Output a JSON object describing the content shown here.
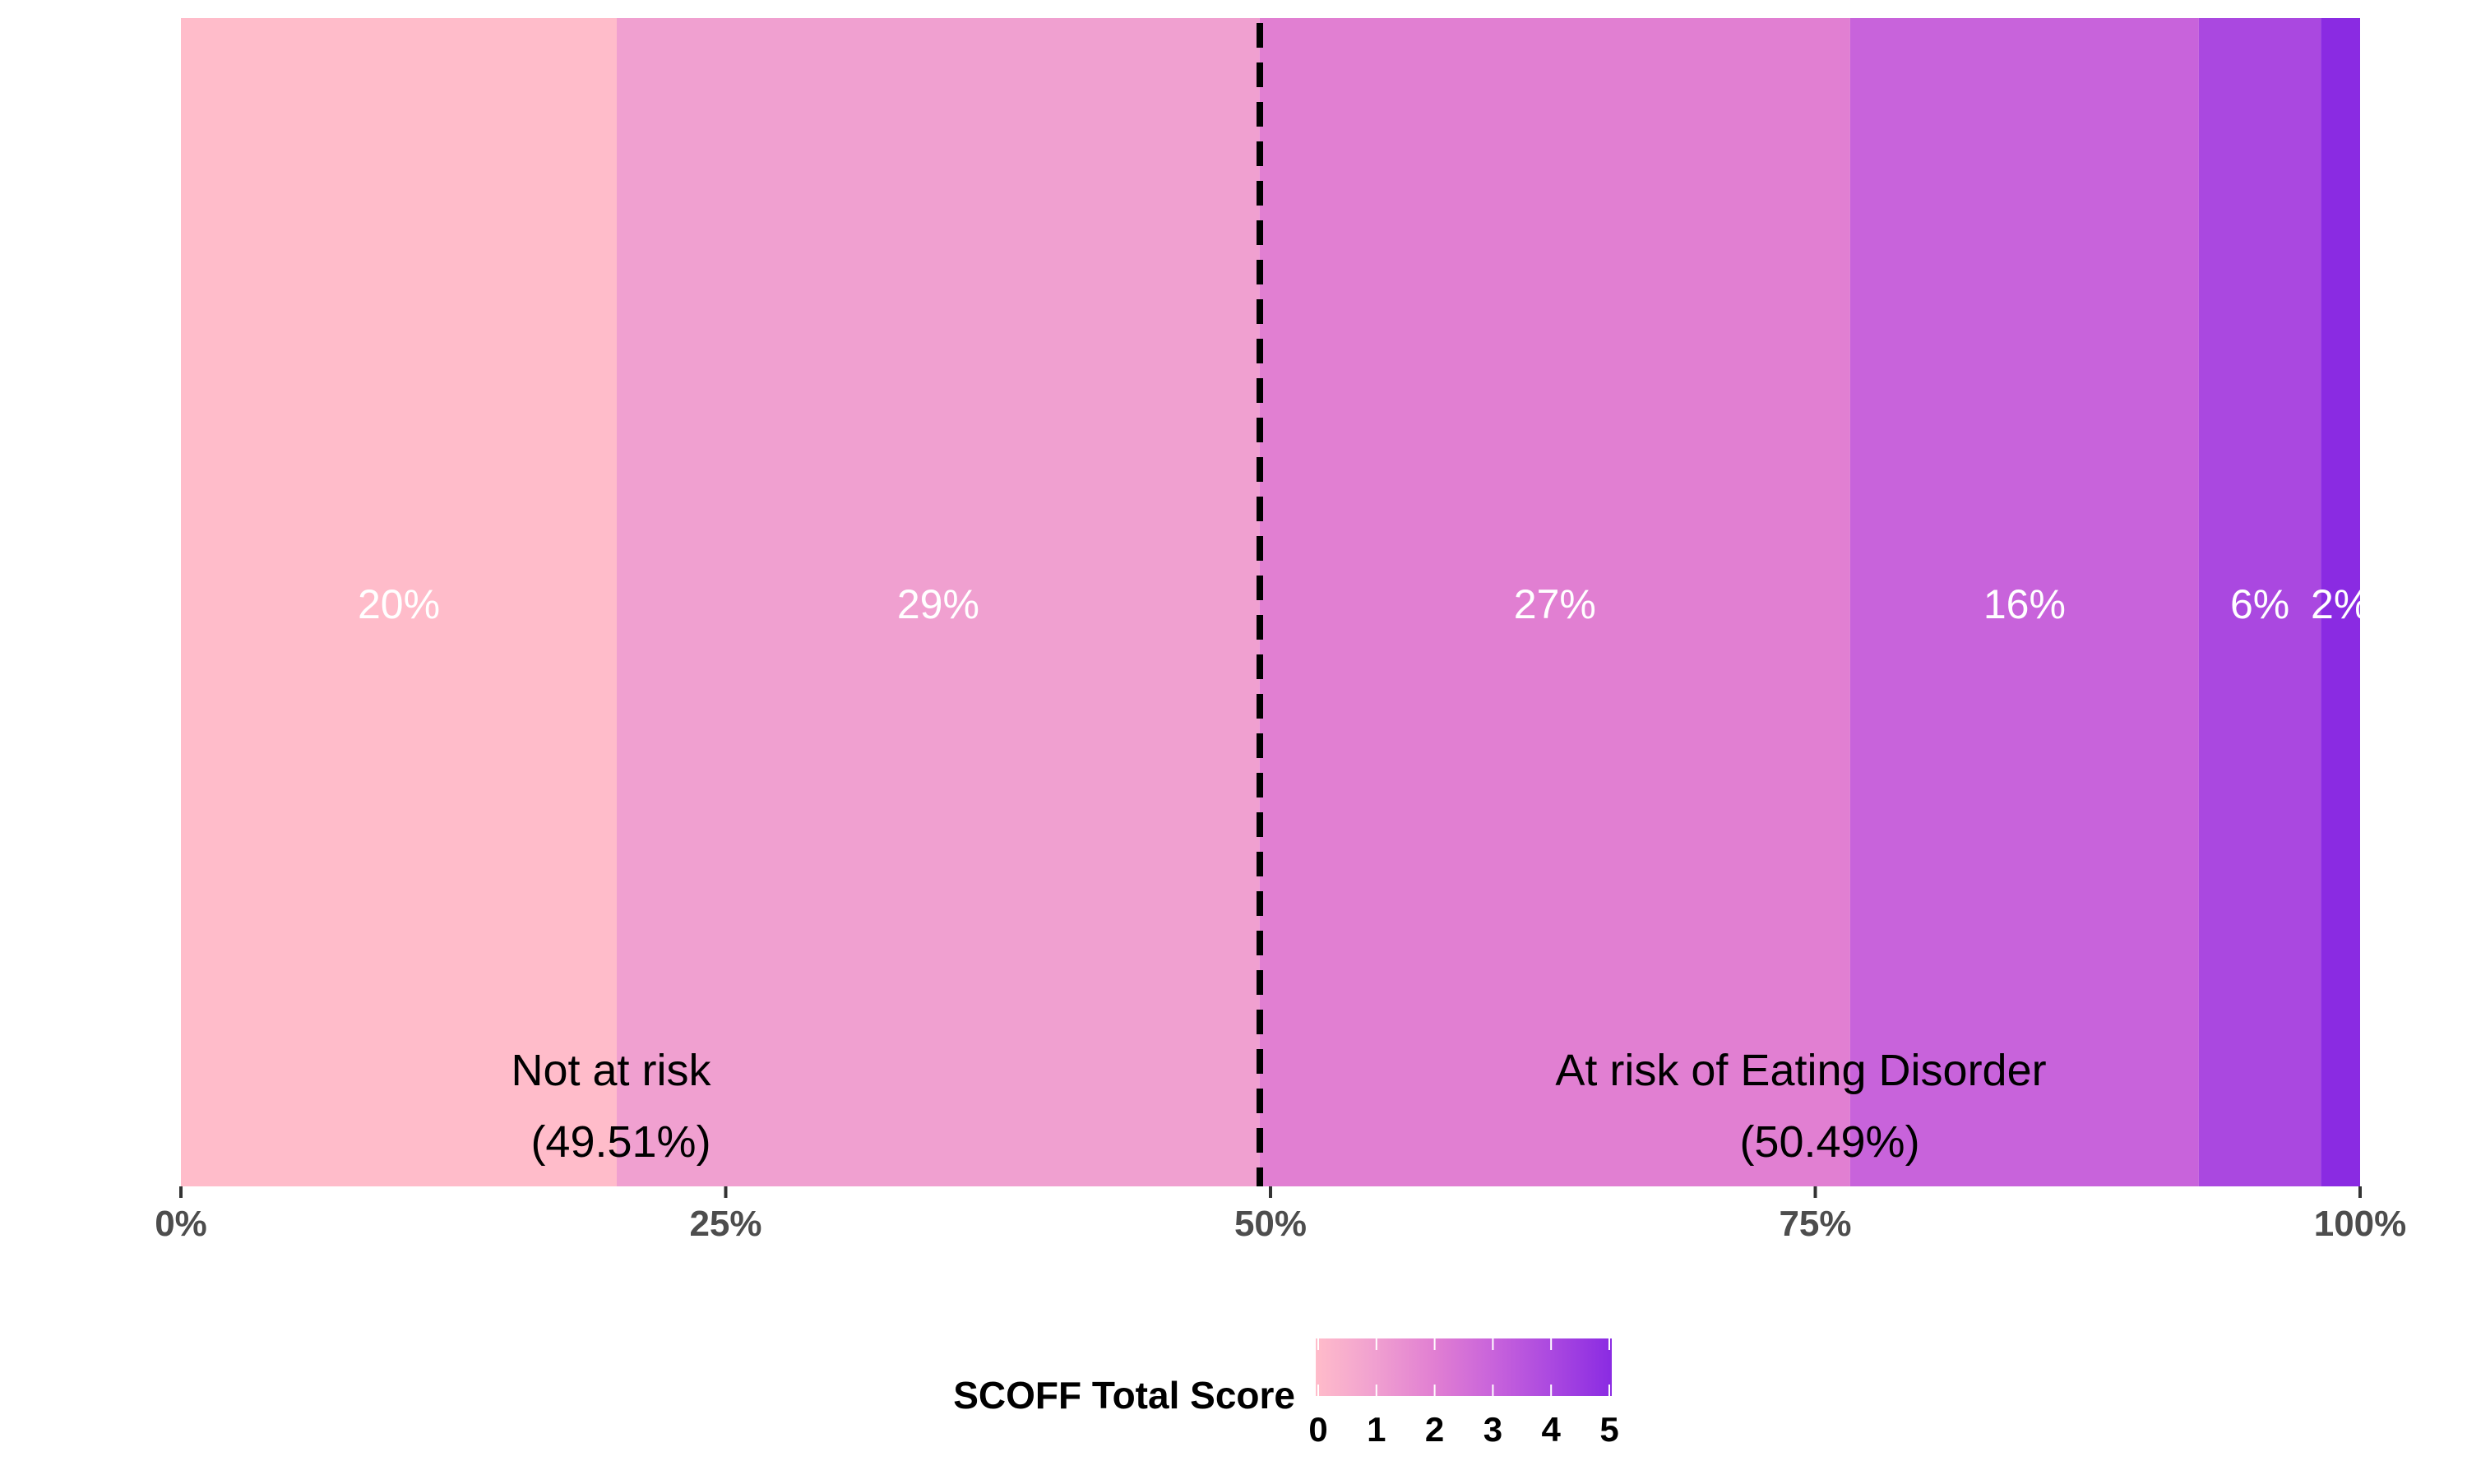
{
  "chart_data": {
    "type": "bar",
    "orientation": "horizontal-stacked",
    "segments": [
      {
        "score": 0,
        "value": 20.0,
        "label": "20%",
        "color": "#FFBCCA"
      },
      {
        "score": 1,
        "value": 29.5,
        "label": "29%",
        "color": "#F0A0D0"
      },
      {
        "score": 2,
        "value": 27.1,
        "label": "27%",
        "color": "#E17FD2"
      },
      {
        "score": 3,
        "value": 16.0,
        "label": "16%",
        "color": "#C863DB"
      },
      {
        "score": 4,
        "value": 5.6,
        "label": "6%",
        "color": "#AA48E0"
      },
      {
        "score": 5,
        "value": 1.8,
        "label": "2%",
        "color": "#8A2BE2"
      }
    ],
    "threshold": {
      "value": 49.51,
      "style": "dashed",
      "color": "#000000"
    },
    "groups": [
      {
        "name": "Not at risk",
        "share": "(49.51%)"
      },
      {
        "name": "At risk of Eating Disorder",
        "share": "(50.49%)"
      }
    ],
    "x_ticks": [
      {
        "value": 0,
        "label": "0%"
      },
      {
        "value": 25,
        "label": "25%"
      },
      {
        "value": 50,
        "label": "50%"
      },
      {
        "value": 75,
        "label": "75%"
      },
      {
        "value": 100,
        "label": "100%"
      }
    ],
    "xlim": [
      0,
      100
    ],
    "grid": false,
    "legend": {
      "title": "SCOFF Total Score",
      "placement": "bottom",
      "scale_min": 0,
      "scale_max": 5,
      "ticks": [
        "0",
        "1",
        "2",
        "3",
        "4",
        "5"
      ],
      "gradient_colors": [
        "#FFBCCA",
        "#F0A0D0",
        "#E17FD2",
        "#C863DB",
        "#AA48E0",
        "#8A2BE2"
      ]
    }
  }
}
